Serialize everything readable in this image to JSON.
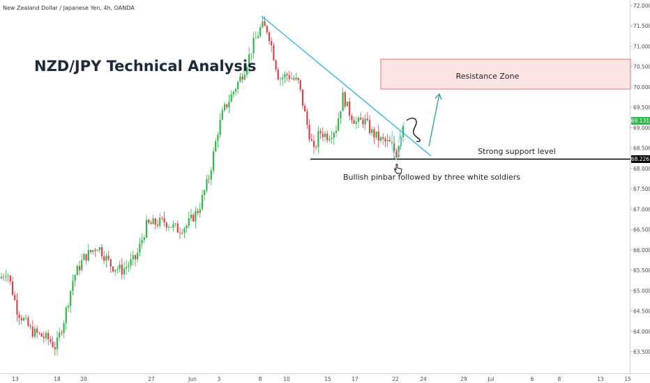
{
  "header": {
    "symbol": "New Zealand Dollar / Japanese Yen, 4h, OANDA"
  },
  "title": "NZD/JPY Technical Analysis",
  "annotations": {
    "resistance_zone": "Resistance Zone",
    "support_label": "Strong support level",
    "pinbar_note": "Bullish pinbar followed by three white soldiers"
  },
  "price_badges": {
    "current": "69.131",
    "support": "68.226"
  },
  "colors": {
    "up": "#26a69a",
    "up_fill": "#2fb84a",
    "down": "#e0404a",
    "trendline": "#29b6d9",
    "zone_fill": "#fde4e4",
    "zone_border": "#e57373",
    "support_line": "#000000",
    "current_badge": "#2fb84a",
    "arrow": "#1aa39a"
  },
  "chart_data": {
    "type": "candlestick",
    "instrument": "NZD/JPY",
    "timeframe": "4h",
    "broker": "OANDA",
    "ylim": [
      63.2,
      72.1
    ],
    "y_ticks": [
      "72.000",
      "71.500",
      "71.000",
      "70.500",
      "70.000",
      "69.500",
      "69.000",
      "68.500",
      "68.000",
      "67.500",
      "67.000",
      "66.500",
      "66.000",
      "65.500",
      "65.000",
      "64.500",
      "64.000",
      "63.500"
    ],
    "x_ticks": [
      "13",
      "18",
      "20",
      "27",
      "Jun",
      "3",
      "8",
      "10",
      "15",
      "17",
      "22",
      "24",
      "29",
      "Jul",
      "6",
      "8",
      "13",
      "15"
    ],
    "price_path": [
      {
        "date": "May 13",
        "price": 65.3
      },
      {
        "date": "May 15",
        "price": 64.3
      },
      {
        "date": "May 18",
        "price": 63.6
      },
      {
        "date": "May 20",
        "price": 64.9
      },
      {
        "date": "May 22",
        "price": 65.9
      },
      {
        "date": "May 25",
        "price": 65.5
      },
      {
        "date": "May 27",
        "price": 66.6
      },
      {
        "date": "May 30",
        "price": 66.5
      },
      {
        "date": "Jun 1",
        "price": 67.1
      },
      {
        "date": "Jun 3",
        "price": 69.2
      },
      {
        "date": "Jun 5",
        "price": 70.6
      },
      {
        "date": "Jun 8",
        "price": 71.6
      },
      {
        "date": "Jun 10",
        "price": 70.1
      },
      {
        "date": "Jun 12",
        "price": 69.5
      },
      {
        "date": "Jun 13",
        "price": 68.3
      },
      {
        "date": "Jun 15",
        "price": 69.0
      },
      {
        "date": "Jun 16",
        "price": 69.9
      },
      {
        "date": "Jun 17",
        "price": 69.2
      },
      {
        "date": "Jun 19",
        "price": 68.9
      },
      {
        "date": "Jun 22",
        "price": 68.4
      },
      {
        "date": "Jun 23",
        "price": 69.131
      }
    ],
    "resistance_zone": [
      70.0,
      70.65
    ],
    "support_level": 68.226,
    "last_price": 69.131
  }
}
